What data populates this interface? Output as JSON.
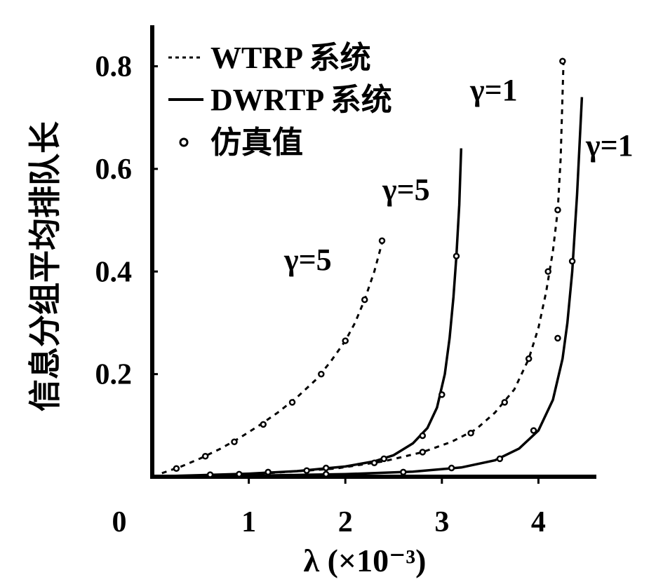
{
  "chart_data": {
    "type": "line",
    "xlabel": "λ (×10⁻³)",
    "ylabel": "信息分组平均排队长",
    "xlim": [
      0,
      4.6
    ],
    "ylim": [
      0,
      0.88
    ],
    "origin_label": "0",
    "x_ticks": [
      {
        "value": 1,
        "label": "1"
      },
      {
        "value": 2,
        "label": "2"
      },
      {
        "value": 3,
        "label": "3"
      },
      {
        "value": 4,
        "label": "4"
      }
    ],
    "y_ticks": [
      {
        "value": 0.2,
        "label": "0.2"
      },
      {
        "value": 0.4,
        "label": "0.4"
      },
      {
        "value": 0.6,
        "label": "0.6"
      },
      {
        "value": 0.8,
        "label": "0.8"
      }
    ],
    "legend": [
      {
        "label": "WTRP 系统",
        "style": "dashed"
      },
      {
        "label": "DWRTP 系统",
        "style": "solid"
      },
      {
        "label": "仿真值",
        "style": "marker"
      }
    ],
    "series": [
      {
        "system": "WTRP",
        "style": "dashed",
        "gamma_label": "γ=5",
        "x": [
          0.1,
          0.3,
          0.5,
          0.7,
          0.9,
          1.1,
          1.3,
          1.5,
          1.7,
          1.85,
          2.0,
          2.1,
          2.2,
          2.3,
          2.35,
          2.4
        ],
        "y": [
          0.007,
          0.02,
          0.036,
          0.054,
          0.075,
          0.099,
          0.125,
          0.155,
          0.19,
          0.225,
          0.265,
          0.3,
          0.345,
          0.4,
          0.435,
          0.47
        ]
      },
      {
        "system": "DWRTP",
        "style": "solid",
        "gamma_label": "γ=5",
        "x": [
          0.1,
          0.5,
          1.0,
          1.5,
          2.0,
          2.3,
          2.5,
          2.7,
          2.85,
          2.95,
          3.03,
          3.08,
          3.12,
          3.15,
          3.18,
          3.2
        ],
        "y": [
          0.001,
          0.003,
          0.006,
          0.011,
          0.02,
          0.03,
          0.042,
          0.065,
          0.095,
          0.135,
          0.2,
          0.27,
          0.35,
          0.43,
          0.53,
          0.64
        ]
      },
      {
        "system": "WTRP",
        "style": "dashed",
        "gamma_label": "γ=1",
        "x": [
          0.1,
          0.7,
          1.3,
          1.9,
          2.4,
          2.8,
          3.1,
          3.35,
          3.55,
          3.75,
          3.9,
          4.0,
          4.08,
          4.15,
          4.2,
          4.23,
          4.26
        ],
        "y": [
          0.001,
          0.003,
          0.008,
          0.016,
          0.03,
          0.048,
          0.068,
          0.092,
          0.125,
          0.17,
          0.23,
          0.29,
          0.36,
          0.44,
          0.52,
          0.62,
          0.81
        ]
      },
      {
        "system": "DWRTP",
        "style": "solid",
        "gamma_label": "γ=1",
        "x": [
          0.1,
          1.0,
          2.0,
          2.7,
          3.2,
          3.55,
          3.8,
          4.0,
          4.15,
          4.25,
          4.3,
          4.35,
          4.4,
          4.45
        ],
        "y": [
          0.0005,
          0.002,
          0.005,
          0.01,
          0.018,
          0.032,
          0.055,
          0.09,
          0.15,
          0.23,
          0.3,
          0.4,
          0.55,
          0.74
        ]
      }
    ],
    "simulation_points": [
      {
        "x": [
          0.25,
          0.55,
          0.85,
          1.15,
          1.45,
          1.75,
          2.0,
          2.2,
          2.38
        ],
        "y": [
          0.016,
          0.04,
          0.068,
          0.102,
          0.145,
          0.2,
          0.265,
          0.345,
          0.46
        ]
      },
      {
        "x": [
          0.6,
          1.2,
          1.8,
          2.4,
          2.8,
          3.0,
          3.15
        ],
        "y": [
          0.004,
          0.009,
          0.017,
          0.035,
          0.08,
          0.16,
          0.43
        ]
      },
      {
        "x": [
          0.9,
          1.6,
          2.3,
          2.8,
          3.3,
          3.65,
          3.9,
          4.1,
          4.2,
          4.25
        ],
        "y": [
          0.005,
          0.012,
          0.027,
          0.048,
          0.085,
          0.145,
          0.23,
          0.4,
          0.52,
          0.81
        ]
      },
      {
        "x": [
          1.8,
          2.6,
          3.1,
          3.6,
          3.95,
          4.2,
          4.35
        ],
        "y": [
          0.005,
          0.009,
          0.017,
          0.035,
          0.09,
          0.27,
          0.42
        ]
      }
    ],
    "annotations": [
      {
        "text": "γ=5",
        "x": 1.85,
        "y": 0.41
      },
      {
        "text": "γ=5",
        "x": 2.78,
        "y": 0.56
      },
      {
        "text": "γ=1",
        "x": 3.4,
        "y": 0.76
      },
      {
        "text": "γ=1",
        "x": 4.5,
        "y": 0.63
      }
    ],
    "colors": {
      "ink": "#000000",
      "background": "#ffffff"
    }
  }
}
